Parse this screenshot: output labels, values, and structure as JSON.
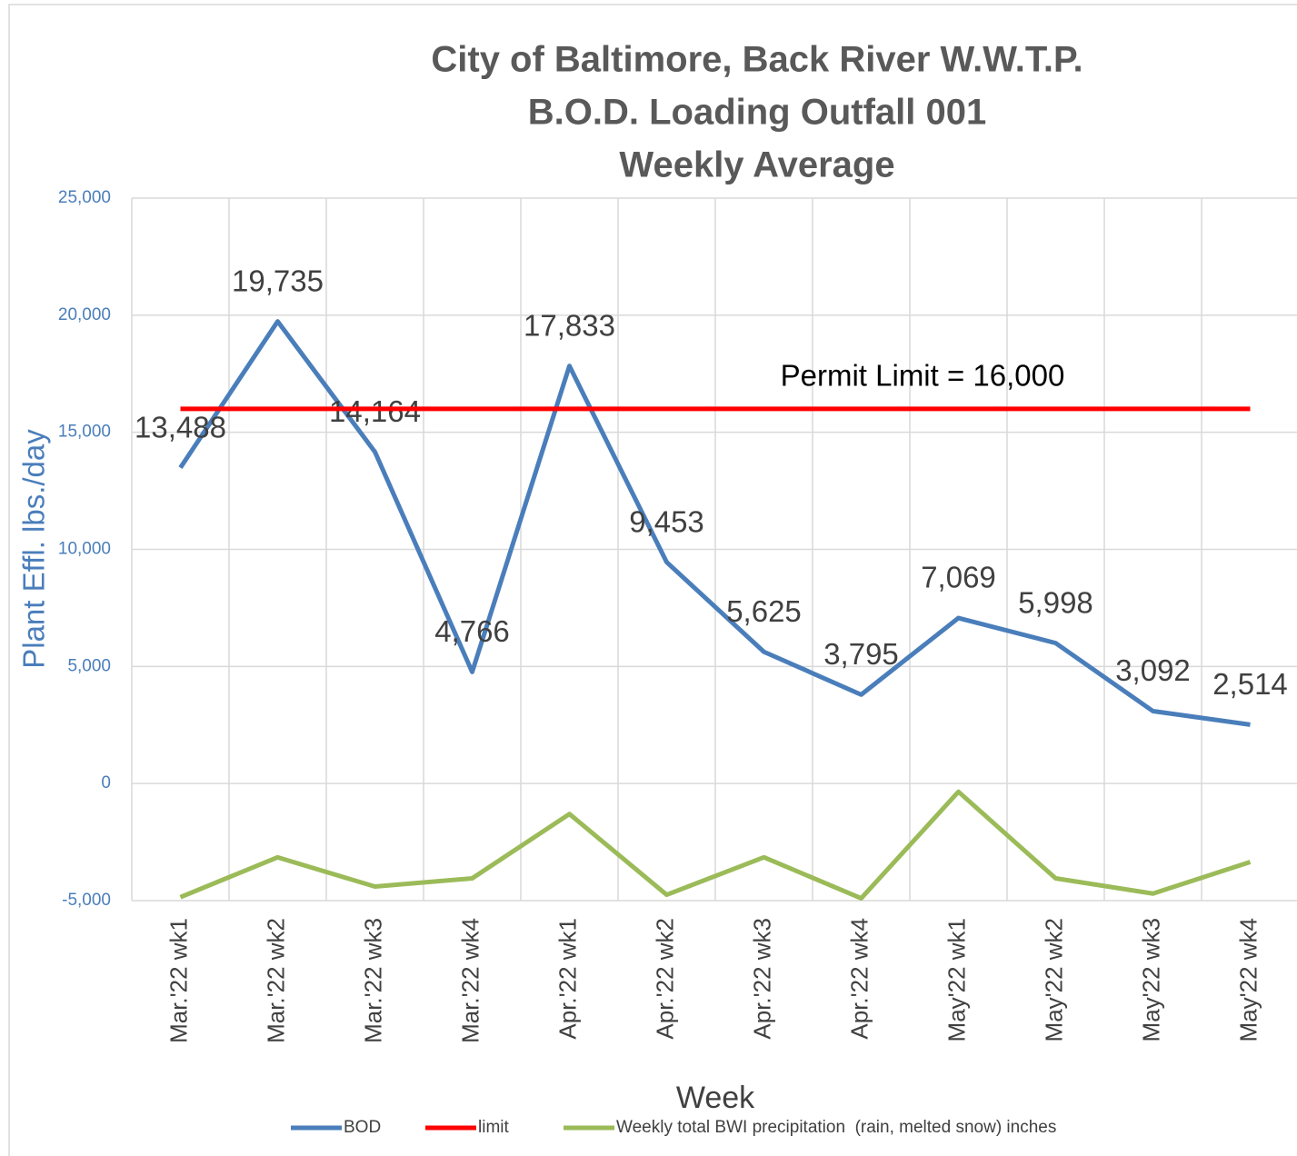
{
  "chart_data": {
    "type": "line",
    "title": [
      "City of Baltimore, Back River W.W.T.P.",
      "B.O.D. Loading Outfall 001",
      "Weekly Average"
    ],
    "y_label": "Plant Effl. lbs./day",
    "x_label": "Week",
    "annotation": "Permit Limit = 16,000",
    "categories": [
      "Mar.'22 wk1",
      "Mar.'22 wk2",
      "Mar.'22 wk3",
      "Mar.'22 wk4",
      "Apr.'22 wk1",
      "Apr.'22 wk2",
      "Apr.'22 wk3",
      "Apr.'22 wk4",
      "May'22 wk1",
      "May'22 wk2",
      "May'22 wk3",
      "May'22 wk4"
    ],
    "series": [
      {
        "name": "BOD",
        "color": "#4a7ebb",
        "values": [
          13488,
          19735,
          14164,
          4766,
          17833,
          9453,
          5625,
          3795,
          7069,
          5998,
          3092,
          2514
        ],
        "value_labels": [
          "13,488",
          "19,735",
          "14,164",
          "4,766",
          "17,833",
          "9,453",
          "5,625",
          "3,795",
          "7,069",
          "5,998",
          "3,092",
          "2,514"
        ]
      },
      {
        "name": "limit",
        "color": "#ff0000",
        "values": [
          16000,
          16000,
          16000,
          16000,
          16000,
          16000,
          16000,
          16000,
          16000,
          16000,
          16000,
          16000
        ]
      },
      {
        "name": "Weekly total BWI precipitation  (rain, melted snow) inches",
        "color": "#9bbb59",
        "values": [
          -4850,
          -3150,
          -4400,
          -4050,
          -1300,
          -4750,
          -3150,
          -4900,
          -350,
          -4050,
          -4700,
          -3350
        ]
      }
    ],
    "ylim": [
      -5000,
      25000
    ],
    "yticks": [
      {
        "value": -5000,
        "label": "-5,000"
      },
      0,
      {
        "value": 5000,
        "label": "5,000"
      },
      {
        "value": 10000,
        "label": "10,000"
      },
      {
        "value": 15000,
        "label": "15,000"
      },
      {
        "value": 20000,
        "label": "20,000"
      },
      {
        "value": 25000,
        "label": "25,000"
      }
    ],
    "grid": true,
    "legend": "bottom"
  }
}
